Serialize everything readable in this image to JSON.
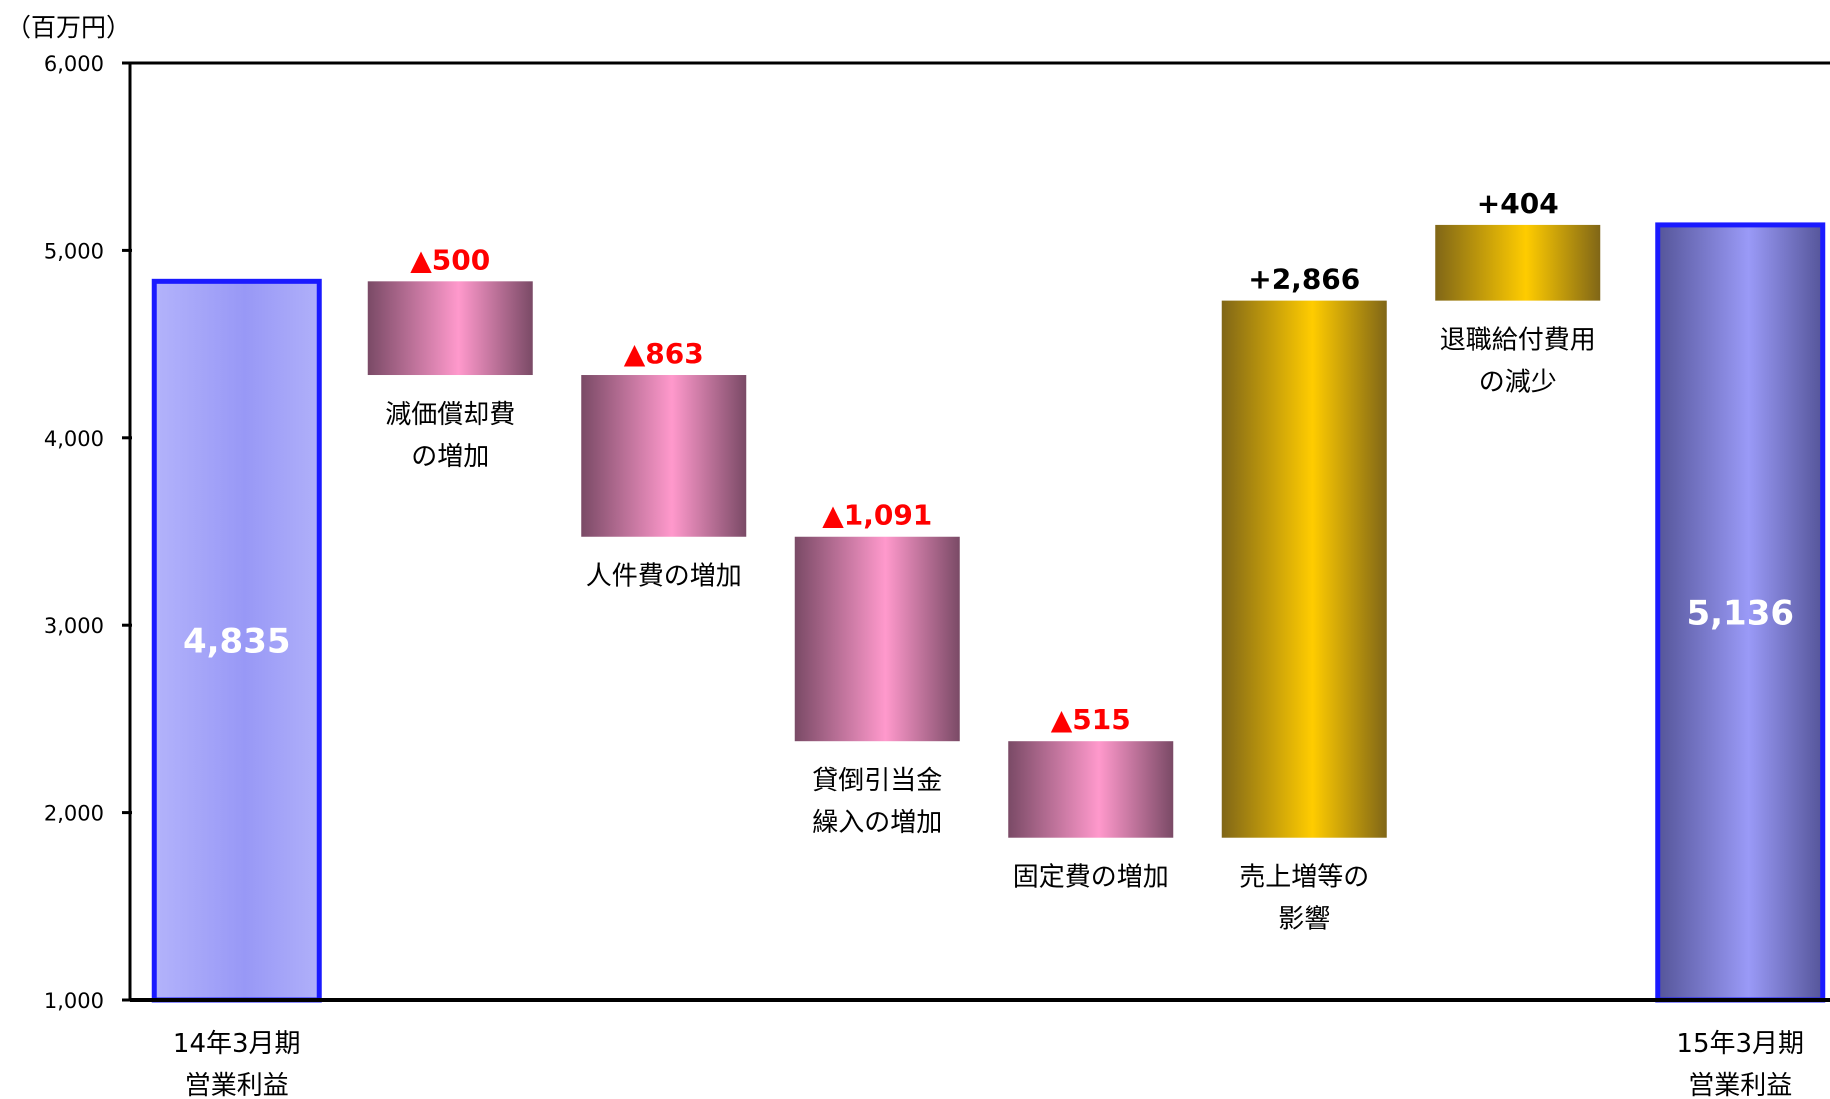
{
  "chart_data": {
    "type": "waterfall",
    "unit_label": "（百万円）",
    "ylim": [
      1000,
      6000
    ],
    "yticks": [
      "1,000",
      "2,000",
      "3,000",
      "4,000",
      "5,000",
      "6,000"
    ],
    "ytick_values": [
      1000,
      2000,
      3000,
      4000,
      5000,
      6000
    ],
    "colors": {
      "start": "#9f9ff8",
      "end": "#7777dd",
      "total_border": "#1a1aff",
      "negative": "#ff99cc",
      "positive": "#ffcc00",
      "negative_label": "#ff0000",
      "positive_label": "#000000"
    },
    "bars": [
      {
        "kind": "total",
        "style": "start",
        "value": 4835,
        "label": "4,835",
        "category": [
          "14年3月期",
          "営業利益"
        ]
      },
      {
        "kind": "delta",
        "value": -500,
        "label": "▲500",
        "category": [
          "減価償却費",
          "の増加"
        ]
      },
      {
        "kind": "delta",
        "value": -863,
        "label": "▲863",
        "category": [
          "人件費の増加"
        ]
      },
      {
        "kind": "delta",
        "value": -1091,
        "label": "▲1,091",
        "category": [
          "貸倒引当金",
          "繰入の増加"
        ]
      },
      {
        "kind": "delta",
        "value": -515,
        "label": "▲515",
        "category": [
          "固定費の増加"
        ]
      },
      {
        "kind": "delta",
        "value": 2866,
        "label": "+2,866",
        "category": [
          "売上増等の",
          "影響"
        ]
      },
      {
        "kind": "delta",
        "value": 404,
        "label": "+404",
        "category": [
          "退職給付費用",
          "の減少"
        ]
      },
      {
        "kind": "total",
        "style": "end",
        "value": 5136,
        "label": "5,136",
        "category": [
          "15年3月期",
          "営業利益"
        ]
      }
    ]
  }
}
